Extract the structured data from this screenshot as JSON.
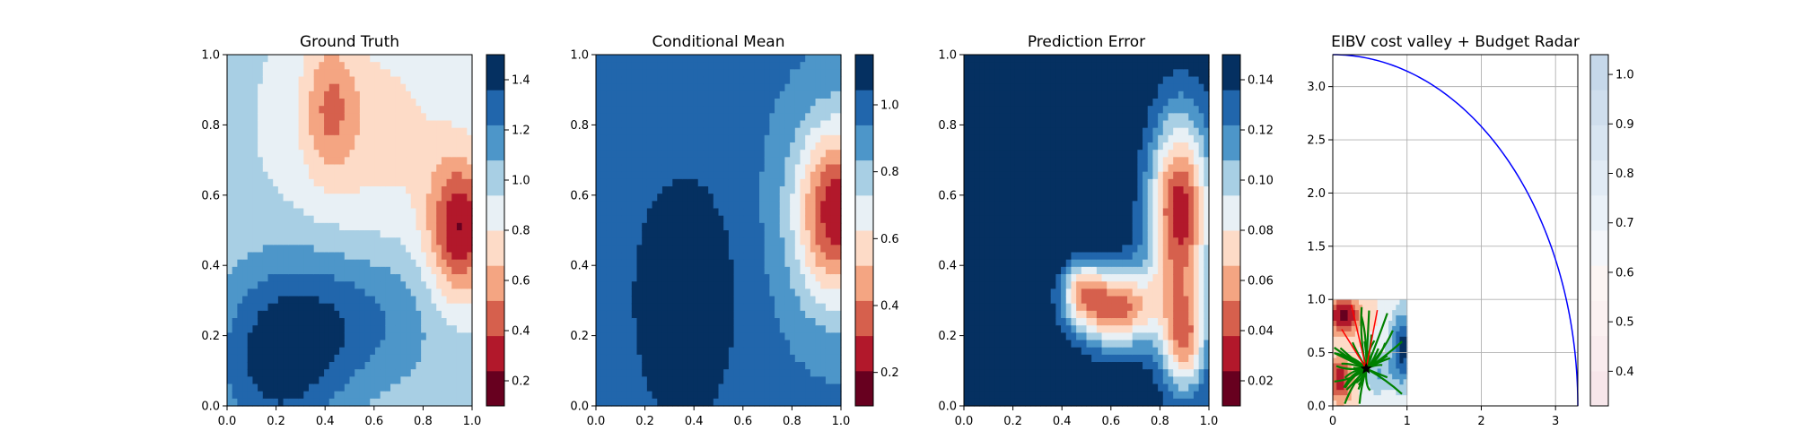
{
  "chart_data": [
    {
      "type": "heatmap",
      "title": "Ground Truth",
      "xlim": [
        0,
        1
      ],
      "ylim": [
        0,
        1
      ],
      "xticks": [
        "0.0",
        "0.2",
        "0.4",
        "0.6",
        "0.8",
        "1.0"
      ],
      "yticks": [
        "0.0",
        "0.2",
        "0.4",
        "0.6",
        "0.8",
        "1.0"
      ],
      "colormap": "RdBu",
      "colorbar": {
        "levels": [
          0.1,
          1.5
        ],
        "ticks": [
          "0.2",
          "0.4",
          "0.6",
          "0.8",
          "1.0",
          "1.2",
          "1.4"
        ],
        "tick_values": [
          0.2,
          0.4,
          0.6,
          0.8,
          1.0,
          1.2,
          1.4
        ]
      }
    },
    {
      "type": "heatmap",
      "title": "Conditional Mean",
      "xlim": [
        0,
        1
      ],
      "ylim": [
        0,
        1
      ],
      "xticks": [
        "0.0",
        "0.2",
        "0.4",
        "0.6",
        "0.8",
        "1.0"
      ],
      "yticks": [
        "0.0",
        "0.2",
        "0.4",
        "0.6",
        "0.8",
        "1.0"
      ],
      "colormap": "RdBu",
      "colorbar": {
        "levels": [
          0.1,
          1.15
        ],
        "ticks": [
          "0.2",
          "0.4",
          "0.6",
          "0.8",
          "1.0"
        ],
        "tick_values": [
          0.2,
          0.4,
          0.6,
          0.8,
          1.0
        ]
      }
    },
    {
      "type": "heatmap",
      "title": "Prediction Error",
      "xlim": [
        0,
        1
      ],
      "ylim": [
        0,
        1
      ],
      "xticks": [
        "0.0",
        "0.2",
        "0.4",
        "0.6",
        "0.8",
        "1.0"
      ],
      "yticks": [
        "0.0",
        "0.2",
        "0.4",
        "0.6",
        "0.8",
        "1.0"
      ],
      "colormap": "RdBu",
      "colorbar": {
        "levels": [
          0.01,
          0.15
        ],
        "ticks": [
          "0.02",
          "0.04",
          "0.06",
          "0.08",
          "0.10",
          "0.12",
          "0.14"
        ],
        "tick_values": [
          0.02,
          0.04,
          0.06,
          0.08,
          0.1,
          0.12,
          0.14
        ]
      }
    },
    {
      "type": "heatmap",
      "title": "EIBV cost valley + Budget Radar",
      "xlim": [
        0,
        3.3
      ],
      "ylim": [
        0,
        3.3
      ],
      "xticks": [
        "0",
        "1",
        "2",
        "3"
      ],
      "xtick_values": [
        0,
        1,
        2,
        3
      ],
      "yticks": [
        "0.0",
        "0.5",
        "1.0",
        "1.5",
        "2.0",
        "2.5",
        "3.0"
      ],
      "ytick_values": [
        0,
        0.5,
        1.0,
        1.5,
        2.0,
        2.5,
        3.0
      ],
      "grid": true,
      "budget_radius": 3.3,
      "current_location": [
        0.45,
        0.35
      ],
      "colormap": "RdBu",
      "colorbar": {
        "levels": [
          0.33,
          1.04
        ],
        "ticks": [
          "0.4",
          "0.5",
          "0.6",
          "0.7",
          "0.8",
          "0.9",
          "1.0"
        ],
        "tick_values": [
          0.4,
          0.5,
          0.6,
          0.7,
          0.8,
          0.9,
          1.0
        ]
      }
    }
  ],
  "colors": {
    "budget_radar": "#0000ff",
    "candidate_paths": "#008000",
    "rejected_paths": "#ff0000",
    "marker": "#000000"
  }
}
